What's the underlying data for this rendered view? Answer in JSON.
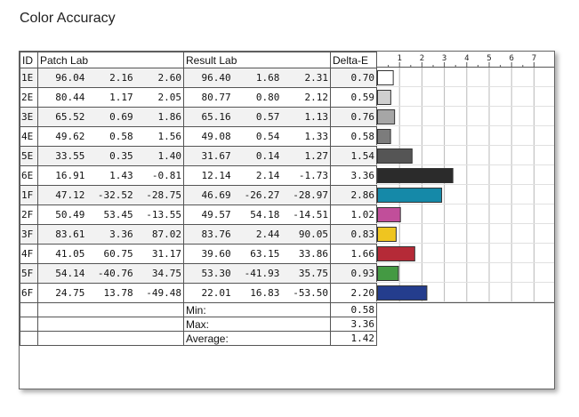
{
  "title": "Color Accuracy",
  "headers": {
    "id": "ID",
    "patch_lab": "Patch Lab",
    "result_lab": "Result Lab",
    "delta_e": "Delta-E"
  },
  "rows": [
    {
      "id": "1E",
      "patch": [
        "96.04",
        "2.16",
        "2.60"
      ],
      "result": [
        "96.40",
        "1.68",
        "2.31"
      ],
      "de": "0.70",
      "color": "#ffffff"
    },
    {
      "id": "2E",
      "patch": [
        "80.44",
        "1.17",
        "2.05"
      ],
      "result": [
        "80.77",
        "0.80",
        "2.12"
      ],
      "de": "0.59",
      "color": "#cfcfcf"
    },
    {
      "id": "3E",
      "patch": [
        "65.52",
        "0.69",
        "1.86"
      ],
      "result": [
        "65.16",
        "0.57",
        "1.13"
      ],
      "de": "0.76",
      "color": "#a6a6a6"
    },
    {
      "id": "4E",
      "patch": [
        "49.62",
        "0.58",
        "1.56"
      ],
      "result": [
        "49.08",
        "0.54",
        "1.33"
      ],
      "de": "0.58",
      "color": "#7c7c7c"
    },
    {
      "id": "5E",
      "patch": [
        "33.55",
        "0.35",
        "1.40"
      ],
      "result": [
        "31.67",
        "0.14",
        "1.27"
      ],
      "de": "1.54",
      "color": "#555555"
    },
    {
      "id": "6E",
      "patch": [
        "16.91",
        "1.43",
        "-0.81"
      ],
      "result": [
        "12.14",
        "2.14",
        "-1.73"
      ],
      "de": "3.36",
      "color": "#2b2b2b"
    },
    {
      "id": "1F",
      "patch": [
        "47.12",
        "-32.52",
        "-28.75"
      ],
      "result": [
        "46.69",
        "-26.27",
        "-28.97"
      ],
      "de": "2.86",
      "color": "#1589a8"
    },
    {
      "id": "2F",
      "patch": [
        "50.49",
        "53.45",
        "-13.55"
      ],
      "result": [
        "49.57",
        "54.18",
        "-14.51"
      ],
      "de": "1.02",
      "color": "#c14e9a"
    },
    {
      "id": "3F",
      "patch": [
        "83.61",
        "3.36",
        "87.02"
      ],
      "result": [
        "83.76",
        "2.44",
        "90.05"
      ],
      "de": "0.83",
      "color": "#efc520"
    },
    {
      "id": "4F",
      "patch": [
        "41.05",
        "60.75",
        "31.17"
      ],
      "result": [
        "39.60",
        "63.15",
        "33.86"
      ],
      "de": "1.66",
      "color": "#b52a37"
    },
    {
      "id": "5F",
      "patch": [
        "54.14",
        "-40.76",
        "34.75"
      ],
      "result": [
        "53.30",
        "-41.93",
        "35.75"
      ],
      "de": "0.93",
      "color": "#449a43"
    },
    {
      "id": "6F",
      "patch": [
        "24.75",
        "13.78",
        "-49.48"
      ],
      "result": [
        "22.01",
        "16.83",
        "-53.50"
      ],
      "de": "2.20",
      "color": "#243d8d"
    }
  ],
  "stats": [
    {
      "label": "Min:",
      "value": "0.58"
    },
    {
      "label": "Max:",
      "value": "3.36"
    },
    {
      "label": "Average:",
      "value": "1.42"
    }
  ],
  "chart_data": {
    "type": "bar",
    "orientation": "horizontal",
    "categories": [
      "1E",
      "2E",
      "3E",
      "4E",
      "5E",
      "6E",
      "1F",
      "2F",
      "3F",
      "4F",
      "5F",
      "6F"
    ],
    "values": [
      0.7,
      0.59,
      0.76,
      0.58,
      1.54,
      3.36,
      2.86,
      1.02,
      0.83,
      1.66,
      0.93,
      2.2
    ],
    "ticks": [
      "1",
      "2",
      "3",
      "4",
      "5",
      "6",
      "7"
    ],
    "xlim": [
      0,
      7.8
    ],
    "grid": true
  }
}
